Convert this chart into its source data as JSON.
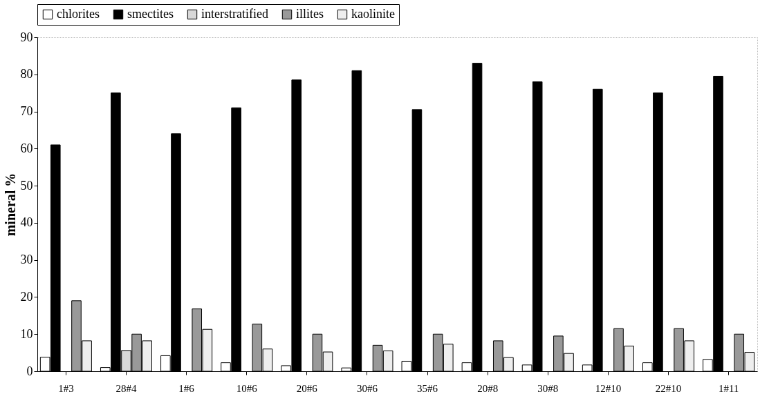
{
  "chart_data": {
    "type": "bar",
    "ylabel": "mineral %",
    "categories": [
      "1#3",
      "28#4",
      "1#6",
      "10#6",
      "20#6",
      "30#6",
      "35#6",
      "20#8",
      "30#8",
      "12#10",
      "22#10",
      "1#11"
    ],
    "series": [
      {
        "name": "chlorites",
        "color": "#ffffff",
        "values": [
          3.8,
          1.0,
          4.2,
          2.3,
          1.5,
          0.9,
          2.7,
          2.3,
          1.7,
          1.7,
          2.3,
          3.2
        ]
      },
      {
        "name": "smectites",
        "color": "#000000",
        "values": [
          61,
          75,
          64,
          71,
          78.5,
          81,
          70.5,
          83,
          78,
          76,
          75,
          79.5
        ]
      },
      {
        "name": "interstratified",
        "color": "#d8d8d8",
        "values": [
          null,
          5.6,
          null,
          null,
          null,
          null,
          null,
          null,
          null,
          null,
          null,
          null
        ]
      },
      {
        "name": "illites",
        "color": "#999999",
        "values": [
          19,
          10,
          16.8,
          12.7,
          10,
          7,
          10,
          8.2,
          9.5,
          11.5,
          11.5,
          10
        ]
      },
      {
        "name": "kaolinite",
        "color": "#eeeeee",
        "values": [
          8.2,
          8.2,
          11.3,
          6,
          5.2,
          5.5,
          7.3,
          3.7,
          4.8,
          6.8,
          8.2,
          5.1
        ]
      }
    ],
    "ylim": [
      0,
      90
    ],
    "yticks": [
      0,
      10,
      20,
      30,
      40,
      50,
      60,
      70,
      80,
      90
    ],
    "grid": false,
    "legend": "top"
  }
}
